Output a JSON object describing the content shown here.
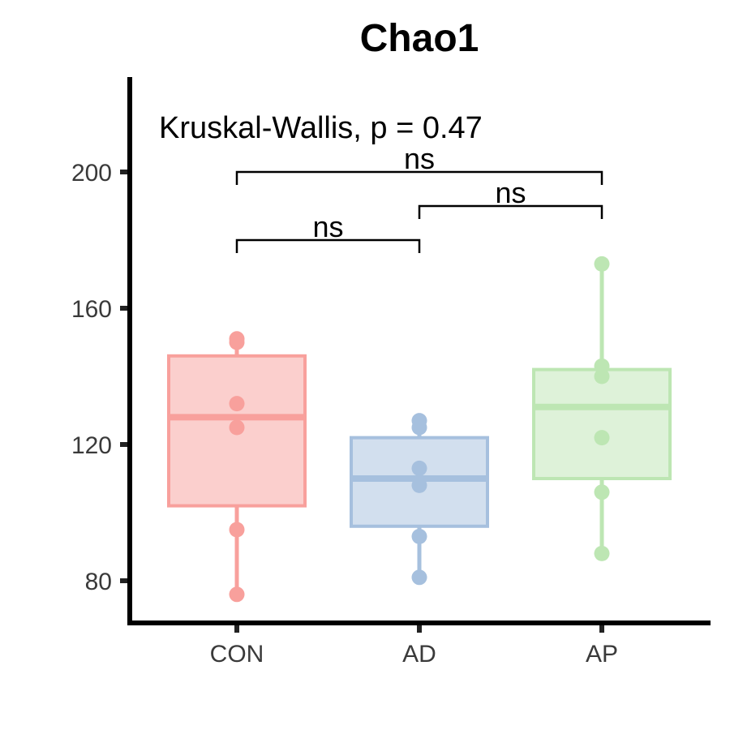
{
  "chart_data": {
    "type": "box",
    "title": "Chao1",
    "xlabel": "",
    "ylabel": "",
    "categories": [
      "CON",
      "AD",
      "AP"
    ],
    "colors": [
      "#F8A09C",
      "#A6C0DE",
      "#BDE6B3"
    ],
    "ylim": [
      68,
      226
    ],
    "yticks": [
      80,
      120,
      160,
      200
    ],
    "boxes": [
      {
        "group": "CON",
        "min": 76,
        "q1": 102,
        "median": 128,
        "q3": 146,
        "max": 151
      },
      {
        "group": "AD",
        "min": 81,
        "q1": 96,
        "median": 110,
        "q3": 122,
        "max": 127
      },
      {
        "group": "AP",
        "min": 88,
        "q1": 110,
        "median": 131,
        "q3": 142,
        "max": 173
      }
    ],
    "points": [
      {
        "group": "CON",
        "values": [
          151,
          150,
          132,
          125,
          95,
          76
        ]
      },
      {
        "group": "AD",
        "values": [
          127,
          125,
          113,
          108,
          93,
          81
        ]
      },
      {
        "group": "AP",
        "values": [
          173,
          143,
          140,
          122,
          106,
          88
        ]
      }
    ],
    "annotations": {
      "test_label": "Kruskal-Wallis, p = 0.47",
      "comparisons": [
        {
          "from": "CON",
          "to": "AD",
          "label": "ns",
          "y": 180
        },
        {
          "from": "AD",
          "to": "AP",
          "label": "ns",
          "y": 190
        },
        {
          "from": "CON",
          "to": "AP",
          "label": "ns",
          "y": 200
        }
      ]
    },
    "grid": false,
    "legend": "none"
  }
}
